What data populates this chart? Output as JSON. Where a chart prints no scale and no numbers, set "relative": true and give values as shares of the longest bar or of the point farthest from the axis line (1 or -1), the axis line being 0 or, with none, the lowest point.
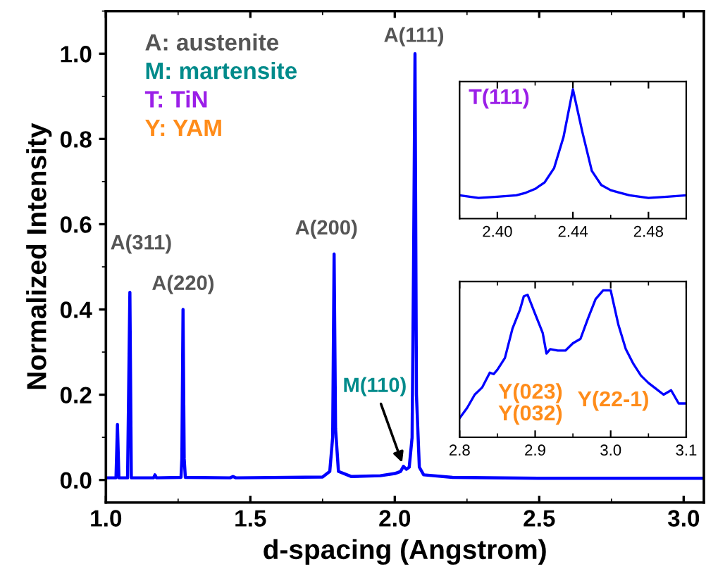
{
  "chart_data": [
    {
      "type": "line",
      "xlabel": "d-spacing (Angstrom)",
      "ylabel": "Normalized Intensity",
      "xlim": [
        1.0,
        3.07
      ],
      "xticks": [
        {
          "value": 1.0,
          "label": "1.0"
        },
        {
          "value": 1.5,
          "label": "1.5"
        },
        {
          "value": 2.0,
          "label": "2.0"
        },
        {
          "value": 2.5,
          "label": "2.5"
        },
        {
          "value": 3.0,
          "label": "3.0"
        }
      ],
      "ylim": [
        -0.053,
        1.1
      ],
      "yticks": [
        {
          "value": 0.0,
          "label": "0.0"
        },
        {
          "value": 0.2,
          "label": "0.2"
        },
        {
          "value": 0.4,
          "label": "0.4"
        },
        {
          "value": 0.6,
          "label": "0.6"
        },
        {
          "value": 0.8,
          "label": "0.8"
        },
        {
          "value": 1.0,
          "label": "1.0"
        }
      ],
      "grid": false,
      "marker": "none",
      "line_style": "solid",
      "series": [
        {
          "color": "#0000ff",
          "x": [
            1.0,
            1.035,
            1.04,
            1.045,
            1.075,
            1.083,
            1.088,
            1.165,
            1.17,
            1.175,
            1.26,
            1.263,
            1.267,
            1.271,
            1.275,
            1.43,
            1.44,
            1.45,
            1.75,
            1.775,
            1.785,
            1.79,
            1.795,
            1.805,
            1.85,
            1.95,
            2.0,
            2.02,
            2.03,
            2.04,
            2.05,
            2.06,
            2.065,
            2.07,
            2.075,
            2.085,
            2.1,
            2.2,
            2.5,
            3.07
          ],
          "values": [
            0.005,
            0.005,
            0.13,
            0.005,
            0.005,
            0.44,
            0.005,
            0.005,
            0.012,
            0.005,
            0.006,
            0.05,
            0.4,
            0.05,
            0.006,
            0.005,
            0.008,
            0.005,
            0.007,
            0.02,
            0.1,
            0.53,
            0.12,
            0.02,
            0.008,
            0.01,
            0.015,
            0.02,
            0.032,
            0.025,
            0.03,
            0.1,
            0.5,
            1.0,
            0.2,
            0.03,
            0.012,
            0.006,
            0.004,
            0.004
          ]
        }
      ],
      "annotations": [
        {
          "text": "A(311)",
          "x": 1.083,
          "y": 0.44
        },
        {
          "text": "A(220)",
          "x": 1.267,
          "y": 0.4
        },
        {
          "text": "A(200)",
          "x": 1.79,
          "y": 0.53
        },
        {
          "text": "A(111)",
          "x": 2.07,
          "y": 1.0
        },
        {
          "text": "M(110)",
          "x": 2.03,
          "y": 0.032
        },
        "A: austenite",
        "M: martensite",
        "T: TiN",
        "Y: YAM"
      ]
    },
    {
      "type": "line",
      "relative": true,
      "xlim": [
        2.38,
        2.5
      ],
      "xticks": [
        {
          "value": 2.4,
          "label": "2.40"
        },
        {
          "value": 2.44,
          "label": "2.44"
        },
        {
          "value": 2.48,
          "label": "2.48"
        }
      ],
      "grid": false,
      "marker": "none",
      "line_style": "solid",
      "series": [
        {
          "color": "#0000ff",
          "x": [
            2.38,
            2.39,
            2.4,
            2.41,
            2.415,
            2.42,
            2.425,
            2.43,
            2.435,
            2.44,
            2.445,
            2.45,
            2.455,
            2.46,
            2.465,
            2.47,
            2.48,
            2.49,
            2.5
          ],
          "values": [
            0.18,
            0.16,
            0.17,
            0.18,
            0.2,
            0.23,
            0.28,
            0.39,
            0.63,
            1.0,
            0.67,
            0.37,
            0.26,
            0.22,
            0.2,
            0.18,
            0.16,
            0.17,
            0.18
          ]
        }
      ],
      "annotations": [
        "T(111)"
      ]
    },
    {
      "type": "line",
      "relative": true,
      "xlim": [
        2.8,
        3.1
      ],
      "xticks": [
        {
          "value": 2.8,
          "label": "2.8"
        },
        {
          "value": 2.9,
          "label": "2.9"
        },
        {
          "value": 3.0,
          "label": "3.0"
        },
        {
          "value": 3.1,
          "label": "3.1"
        }
      ],
      "grid": false,
      "marker": "none",
      "line_style": "solid",
      "series": [
        {
          "color": "#0000ff",
          "x": [
            2.8,
            2.81,
            2.82,
            2.83,
            2.84,
            2.845,
            2.85,
            2.86,
            2.87,
            2.88,
            2.885,
            2.89,
            2.9,
            2.91,
            2.915,
            2.92,
            2.93,
            2.94,
            2.95,
            2.96,
            2.97,
            2.98,
            2.99,
            3.0,
            3.01,
            3.02,
            3.03,
            3.04,
            3.05,
            3.06,
            3.07,
            3.08,
            3.09,
            3.1
          ],
          "values": [
            0.13,
            0.2,
            0.29,
            0.34,
            0.44,
            0.43,
            0.46,
            0.54,
            0.74,
            0.87,
            0.96,
            0.97,
            0.84,
            0.71,
            0.57,
            0.6,
            0.59,
            0.59,
            0.64,
            0.67,
            0.81,
            0.94,
            1.0,
            1.0,
            0.77,
            0.6,
            0.5,
            0.42,
            0.37,
            0.33,
            0.29,
            0.32,
            0.23,
            0.23
          ]
        }
      ],
      "annotations": [
        "Y(023)\nY(032)",
        "Y(22-1)"
      ]
    }
  ]
}
